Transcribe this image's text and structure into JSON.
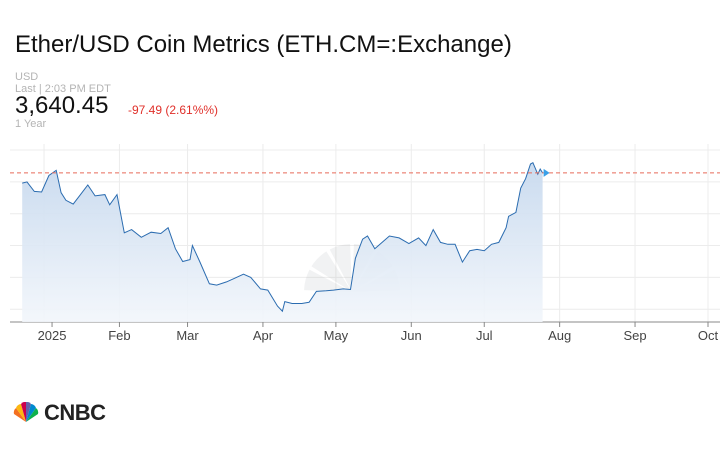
{
  "header": {
    "title": "Ether/USD Coin Metrics (ETH.CM=:Exchange)",
    "currency": "USD",
    "last_update": "Last | 2:03 PM EDT",
    "price": "3,640.45",
    "change": "-97.49 (2.61%%)",
    "change_color": "#e0302a",
    "range": "1 Year"
  },
  "brand": {
    "name": "CNBC",
    "logo_icon": "peacock-icon"
  },
  "chart_data": {
    "type": "area",
    "x_tick_labels": [
      "2025",
      "Feb",
      "Mar",
      "Apr",
      "May",
      "Jun",
      "Jul",
      "Aug",
      "Sep",
      "Oct"
    ],
    "y_range": [
      1300,
      4000
    ],
    "y_gridlines": [
      4000,
      3500,
      3000,
      2500,
      2000,
      1500
    ],
    "last_price": 3640.45,
    "line_color": "#2b6cb0",
    "fill_color": "#c7d9ee",
    "reference_line_color": "#e86b5a",
    "grid": true,
    "series": [
      {
        "values": [
          {
            "x": "2024-12-23",
            "y": 3480
          },
          {
            "x": "2024-12-25",
            "y": 3500
          },
          {
            "x": "2024-12-28",
            "y": 3350
          },
          {
            "x": "2024-12-31",
            "y": 3340
          },
          {
            "x": "2025-01-03",
            "y": 3600
          },
          {
            "x": "2025-01-06",
            "y": 3680
          },
          {
            "x": "2025-01-08",
            "y": 3330
          },
          {
            "x": "2025-01-10",
            "y": 3210
          },
          {
            "x": "2025-01-13",
            "y": 3150
          },
          {
            "x": "2025-01-16",
            "y": 3300
          },
          {
            "x": "2025-01-19",
            "y": 3450
          },
          {
            "x": "2025-01-22",
            "y": 3280
          },
          {
            "x": "2025-01-26",
            "y": 3300
          },
          {
            "x": "2025-01-28",
            "y": 3140
          },
          {
            "x": "2025-01-31",
            "y": 3300
          },
          {
            "x": "2025-02-03",
            "y": 2700
          },
          {
            "x": "2025-02-06",
            "y": 2750
          },
          {
            "x": "2025-02-10",
            "y": 2630
          },
          {
            "x": "2025-02-14",
            "y": 2710
          },
          {
            "x": "2025-02-18",
            "y": 2690
          },
          {
            "x": "2025-02-21",
            "y": 2780
          },
          {
            "x": "2025-02-24",
            "y": 2450
          },
          {
            "x": "2025-02-27",
            "y": 2250
          },
          {
            "x": "2025-03-02",
            "y": 2280
          },
          {
            "x": "2025-03-03",
            "y": 2500
          },
          {
            "x": "2025-03-06",
            "y": 2250
          },
          {
            "x": "2025-03-10",
            "y": 1900
          },
          {
            "x": "2025-03-13",
            "y": 1880
          },
          {
            "x": "2025-03-17",
            "y": 1930
          },
          {
            "x": "2025-03-20",
            "y": 1980
          },
          {
            "x": "2025-03-24",
            "y": 2050
          },
          {
            "x": "2025-03-27",
            "y": 2000
          },
          {
            "x": "2025-03-31",
            "y": 1820
          },
          {
            "x": "2025-04-03",
            "y": 1800
          },
          {
            "x": "2025-04-07",
            "y": 1550
          },
          {
            "x": "2025-04-09",
            "y": 1470
          },
          {
            "x": "2025-04-10",
            "y": 1620
          },
          {
            "x": "2025-04-13",
            "y": 1590
          },
          {
            "x": "2025-04-17",
            "y": 1590
          },
          {
            "x": "2025-04-20",
            "y": 1610
          },
          {
            "x": "2025-04-23",
            "y": 1780
          },
          {
            "x": "2025-04-27",
            "y": 1790
          },
          {
            "x": "2025-04-30",
            "y": 1800
          },
          {
            "x": "2025-05-04",
            "y": 1820
          },
          {
            "x": "2025-05-07",
            "y": 1810
          },
          {
            "x": "2025-05-09",
            "y": 2300
          },
          {
            "x": "2025-05-12",
            "y": 2600
          },
          {
            "x": "2025-05-14",
            "y": 2650
          },
          {
            "x": "2025-05-17",
            "y": 2450
          },
          {
            "x": "2025-05-20",
            "y": 2550
          },
          {
            "x": "2025-05-23",
            "y": 2650
          },
          {
            "x": "2025-05-27",
            "y": 2620
          },
          {
            "x": "2025-05-31",
            "y": 2530
          },
          {
            "x": "2025-06-04",
            "y": 2620
          },
          {
            "x": "2025-06-07",
            "y": 2500
          },
          {
            "x": "2025-06-10",
            "y": 2750
          },
          {
            "x": "2025-06-13",
            "y": 2550
          },
          {
            "x": "2025-06-16",
            "y": 2520
          },
          {
            "x": "2025-06-19",
            "y": 2520
          },
          {
            "x": "2025-06-22",
            "y": 2240
          },
          {
            "x": "2025-06-25",
            "y": 2420
          },
          {
            "x": "2025-06-28",
            "y": 2440
          },
          {
            "x": "2025-07-01",
            "y": 2420
          },
          {
            "x": "2025-07-04",
            "y": 2520
          },
          {
            "x": "2025-07-07",
            "y": 2550
          },
          {
            "x": "2025-07-10",
            "y": 2780
          },
          {
            "x": "2025-07-11",
            "y": 2960
          },
          {
            "x": "2025-07-14",
            "y": 3020
          },
          {
            "x": "2025-07-16",
            "y": 3400
          },
          {
            "x": "2025-07-18",
            "y": 3550
          },
          {
            "x": "2025-07-20",
            "y": 3780
          },
          {
            "x": "2025-07-21",
            "y": 3800
          },
          {
            "x": "2025-07-23",
            "y": 3620
          },
          {
            "x": "2025-07-24",
            "y": 3700
          },
          {
            "x": "2025-07-25",
            "y": 3640
          }
        ]
      }
    ]
  }
}
